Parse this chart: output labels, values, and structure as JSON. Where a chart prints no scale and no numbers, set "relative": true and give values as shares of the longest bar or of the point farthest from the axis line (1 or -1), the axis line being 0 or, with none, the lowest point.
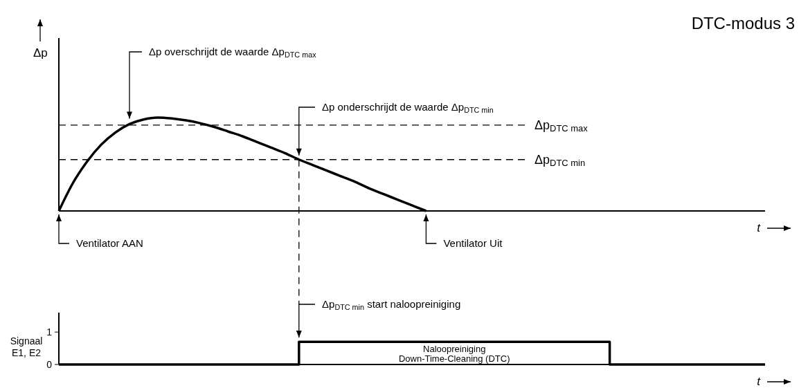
{
  "chart_data": [
    {
      "type": "line",
      "title": "DTC-modus 3",
      "ylabel": "Δp",
      "xlabel": "t",
      "relative": true,
      "line_style": "solid",
      "categories": [
        null,
        null,
        null,
        null,
        null,
        null,
        null,
        null,
        null,
        null,
        null,
        null,
        null,
        null,
        null,
        null,
        null,
        null,
        null,
        null,
        null,
        null,
        null,
        null,
        null,
        null,
        null,
        null,
        null,
        null,
        null,
        null,
        null,
        null,
        null,
        null,
        null,
        null,
        null,
        null,
        null,
        null,
        null,
        null,
        null,
        null,
        null,
        null,
        null,
        null,
        null
      ],
      "series": [
        {
          "color": "#000000",
          "values": [
            0,
            0.3,
            0.53,
            0.71,
            0.84,
            0.93,
            0.98,
            1,
            0.99,
            0.97,
            0.94,
            0.9,
            0.85,
            0.8,
            0.74,
            0.68,
            0.62,
            0.55,
            0.49,
            0.43,
            0.37,
            0.31,
            0.24,
            0.18,
            0.12,
            0.06,
            0,
            null,
            null,
            null,
            null,
            null,
            null,
            null,
            null,
            null,
            null,
            null,
            null,
            null,
            null,
            null,
            null,
            null,
            null,
            null,
            null,
            null,
            null,
            null,
            null
          ]
        }
      ],
      "ref_lines": [
        {
          "axis": "y",
          "value": 0.92,
          "label": "Δp$_{DTC max}$",
          "line_style": "dashed",
          "color": "#000000"
        },
        {
          "axis": "y",
          "value": 0.55,
          "label": "Δp$_{DTC min}$",
          "line_style": "dashed",
          "color": "#000000"
        }
      ],
      "annotations": [
        "Δp overschrijdt de waarde Δp$_{DTC max}$",
        "Δp onderschrijdt de waarde Δp$_{DTC min}$",
        "Ventilator AAN",
        "Ventilator Uit"
      ]
    },
    {
      "type": "step",
      "ylabel": "Signaal\nE1, E2",
      "xlabel": "t",
      "ylim": [
        0,
        1.6
      ],
      "yticks": [
        0,
        1
      ],
      "line_style": "solid",
      "categories": [
        null,
        null,
        null,
        null,
        null,
        null,
        null,
        null,
        null,
        null,
        null,
        null,
        null,
        null,
        null,
        null,
        null,
        null,
        null,
        null,
        null,
        null,
        null,
        null,
        null,
        null,
        null,
        null,
        null,
        null,
        null,
        null,
        null,
        null,
        null,
        null,
        null,
        null,
        null,
        null,
        null,
        null,
        null,
        null,
        null,
        null,
        null,
        null,
        null,
        null,
        null
      ],
      "series": [
        {
          "color": "#000000",
          "values": [
            0,
            0,
            0,
            0,
            0,
            0,
            0,
            0,
            0,
            0,
            0,
            0,
            0,
            0,
            0,
            0,
            0,
            0.7,
            0.7,
            0.7,
            0.7,
            0.7,
            0.7,
            0.7,
            0.7,
            0.7,
            0.7,
            0.7,
            0.7,
            0.7,
            0.7,
            0.7,
            0.7,
            0.7,
            0.7,
            0.7,
            0.7,
            0.7,
            0.7,
            0,
            0,
            0,
            0,
            0,
            0,
            0,
            0,
            0,
            0,
            0,
            0
          ]
        }
      ],
      "annotations": [
        "Δp$_{DTC min}$ start naloopreiniging",
        "Naloopreiniging\nDown-Time-Cleaning (DTC)"
      ]
    }
  ]
}
